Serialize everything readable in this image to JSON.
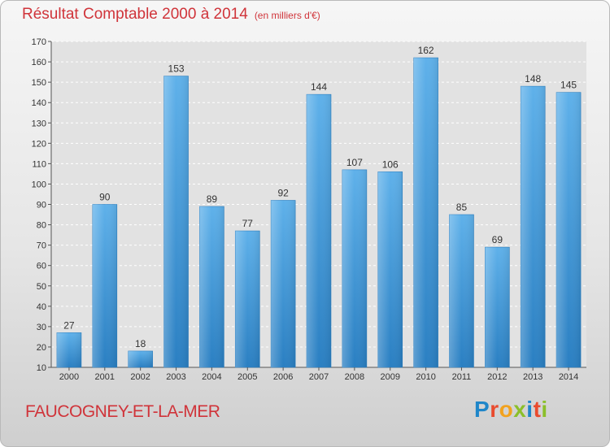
{
  "header": {
    "title": "Résultat Comptable 2000 à 2014",
    "unit": "(en milliers d'€)"
  },
  "footer": {
    "commune": "FAUCOGNEY-ET-LA-MER",
    "logo_letters": [
      "P",
      "r",
      "o",
      "x",
      "i",
      "t",
      "i"
    ]
  },
  "colors": {
    "bar": "#3d93d6",
    "title": "#d0343a",
    "logo": [
      "#1f86c9",
      "#e94b2e",
      "#f2a21e",
      "#8bbf2a",
      "#1f86c9",
      "#e94b2e",
      "#8bbf2a"
    ]
  },
  "chart_data": {
    "type": "bar",
    "title": "Résultat Comptable 2000 à 2014",
    "xlabel": "",
    "ylabel": "",
    "categories": [
      "2000",
      "2001",
      "2002",
      "2003",
      "2004",
      "2005",
      "2006",
      "2007",
      "2008",
      "2009",
      "2010",
      "2011",
      "2012",
      "2013",
      "2014"
    ],
    "values": [
      27,
      90,
      18,
      153,
      89,
      77,
      92,
      144,
      107,
      106,
      162,
      85,
      69,
      148,
      145
    ],
    "ylim": [
      10,
      170
    ],
    "yticks": [
      10,
      20,
      30,
      40,
      50,
      60,
      70,
      80,
      90,
      100,
      110,
      120,
      130,
      140,
      150,
      160,
      170
    ],
    "grid": true,
    "data_labels": true
  }
}
